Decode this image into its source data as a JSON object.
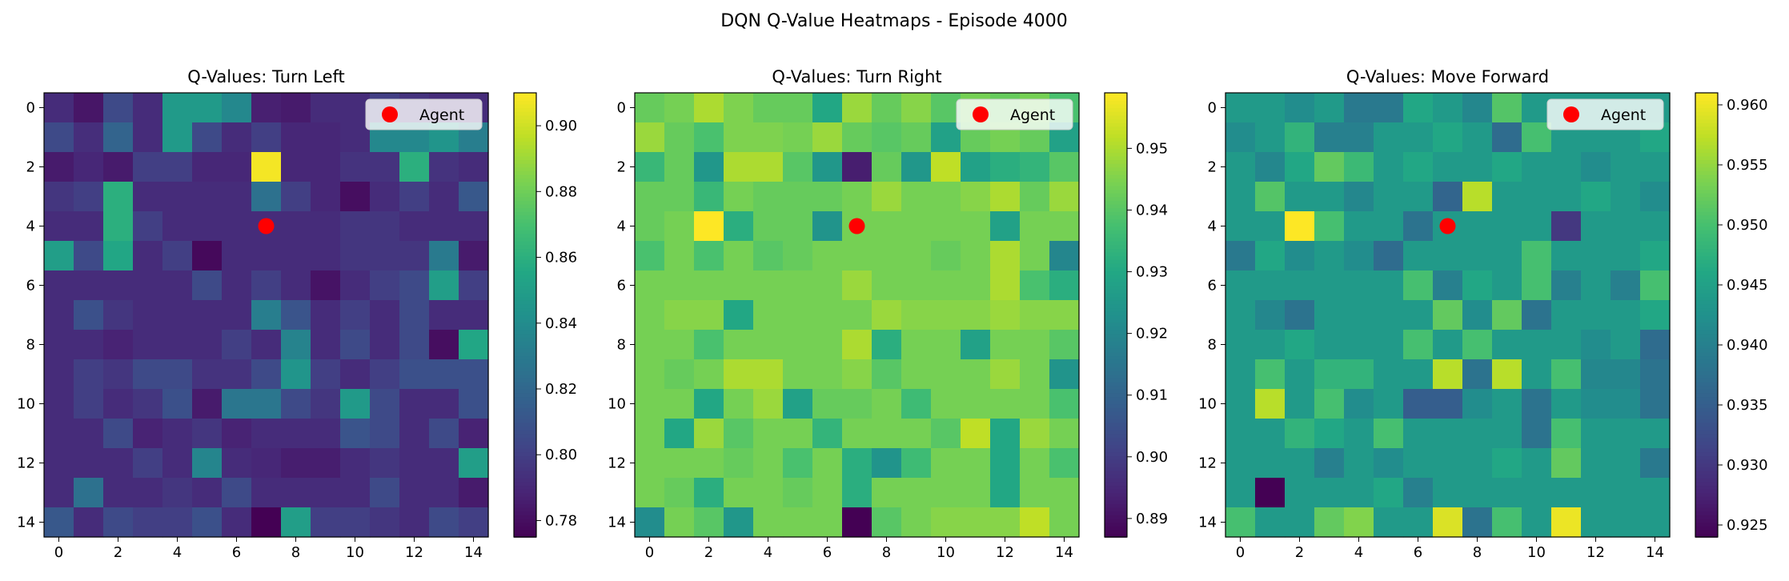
{
  "figure": {
    "suptitle": "DQN Q-Value Heatmaps - Episode 4000"
  },
  "chart_data": [
    {
      "type": "heatmap",
      "title": "Q-Values: Turn Left",
      "xlabel": "",
      "ylabel": "",
      "x_ticks": [
        0,
        2,
        4,
        6,
        8,
        10,
        12,
        14
      ],
      "y_ticks": [
        0,
        2,
        4,
        6,
        8,
        10,
        12,
        14
      ],
      "colorbar": {
        "min": 0.775,
        "max": 0.91,
        "ticks": [
          "0.78",
          "0.80",
          "0.82",
          "0.84",
          "0.86",
          "0.88",
          "0.90"
        ]
      },
      "legend": {
        "label": "Agent",
        "position": "upper right"
      },
      "agent": {
        "x": 7,
        "y": 4,
        "color": "#ff0000"
      },
      "values": [
        [
          0.792,
          0.783,
          0.805,
          0.792,
          0.848,
          0.848,
          0.838,
          0.787,
          0.785,
          0.792,
          0.792,
          0.8,
          0.795,
          0.792,
          0.792
        ],
        [
          0.805,
          0.793,
          0.818,
          0.792,
          0.848,
          0.805,
          0.792,
          0.8,
          0.79,
          0.79,
          0.792,
          0.838,
          0.838,
          0.845,
          0.832
        ],
        [
          0.785,
          0.79,
          0.785,
          0.8,
          0.8,
          0.79,
          0.79,
          0.908,
          0.79,
          0.79,
          0.795,
          0.795,
          0.86,
          0.795,
          0.792
        ],
        [
          0.796,
          0.8,
          0.86,
          0.792,
          0.792,
          0.792,
          0.792,
          0.825,
          0.8,
          0.79,
          0.78,
          0.792,
          0.8,
          0.792,
          0.812
        ],
        [
          0.792,
          0.792,
          0.86,
          0.8,
          0.792,
          0.792,
          0.792,
          0.792,
          0.792,
          0.792,
          0.796,
          0.796,
          0.792,
          0.792,
          0.792
        ],
        [
          0.85,
          0.805,
          0.855,
          0.792,
          0.8,
          0.778,
          0.792,
          0.792,
          0.792,
          0.792,
          0.796,
          0.796,
          0.796,
          0.83,
          0.785
        ],
        [
          0.792,
          0.792,
          0.792,
          0.792,
          0.792,
          0.805,
          0.792,
          0.8,
          0.792,
          0.782,
          0.792,
          0.8,
          0.805,
          0.85,
          0.8
        ],
        [
          0.792,
          0.808,
          0.796,
          0.792,
          0.792,
          0.792,
          0.792,
          0.832,
          0.81,
          0.792,
          0.8,
          0.792,
          0.805,
          0.792,
          0.792
        ],
        [
          0.792,
          0.792,
          0.788,
          0.792,
          0.792,
          0.792,
          0.8,
          0.792,
          0.835,
          0.792,
          0.805,
          0.792,
          0.805,
          0.78,
          0.855
        ],
        [
          0.792,
          0.8,
          0.796,
          0.805,
          0.805,
          0.795,
          0.795,
          0.805,
          0.845,
          0.8,
          0.792,
          0.8,
          0.808,
          0.808,
          0.808
        ],
        [
          0.792,
          0.8,
          0.792,
          0.796,
          0.808,
          0.785,
          0.828,
          0.828,
          0.805,
          0.796,
          0.848,
          0.805,
          0.792,
          0.792,
          0.808
        ],
        [
          0.792,
          0.792,
          0.805,
          0.788,
          0.792,
          0.796,
          0.788,
          0.792,
          0.792,
          0.792,
          0.81,
          0.805,
          0.792,
          0.805,
          0.788
        ],
        [
          0.792,
          0.792,
          0.792,
          0.8,
          0.792,
          0.836,
          0.792,
          0.79,
          0.786,
          0.786,
          0.792,
          0.796,
          0.792,
          0.792,
          0.85
        ],
        [
          0.792,
          0.825,
          0.792,
          0.792,
          0.796,
          0.792,
          0.805,
          0.792,
          0.792,
          0.792,
          0.792,
          0.805,
          0.792,
          0.792,
          0.785
        ],
        [
          0.812,
          0.792,
          0.805,
          0.8,
          0.8,
          0.808,
          0.792,
          0.775,
          0.85,
          0.8,
          0.8,
          0.796,
          0.792,
          0.805,
          0.8
        ]
      ]
    },
    {
      "type": "heatmap",
      "title": "Q-Values: Turn Right",
      "xlabel": "",
      "ylabel": "",
      "x_ticks": [
        0,
        2,
        4,
        6,
        8,
        10,
        12,
        14
      ],
      "y_ticks": [
        0,
        2,
        4,
        6,
        8,
        10,
        12,
        14
      ],
      "colorbar": {
        "min": 0.887,
        "max": 0.959,
        "ticks": [
          "0.89",
          "0.90",
          "0.91",
          "0.92",
          "0.93",
          "0.94",
          "0.95"
        ]
      },
      "legend": {
        "label": "Agent",
        "position": "upper right"
      },
      "agent": {
        "x": 7,
        "y": 4,
        "color": "#ff0000"
      },
      "values": [
        [
          0.942,
          0.944,
          0.95,
          0.945,
          0.942,
          0.942,
          0.93,
          0.948,
          0.942,
          0.946,
          0.94,
          0.944,
          0.942,
          0.944,
          0.938
        ],
        [
          0.948,
          0.942,
          0.938,
          0.945,
          0.945,
          0.944,
          0.948,
          0.942,
          0.94,
          0.942,
          0.928,
          0.942,
          0.944,
          0.942,
          0.928
        ],
        [
          0.935,
          0.942,
          0.925,
          0.95,
          0.95,
          0.94,
          0.925,
          0.893,
          0.942,
          0.925,
          0.952,
          0.928,
          0.932,
          0.934,
          0.94
        ],
        [
          0.942,
          0.942,
          0.935,
          0.944,
          0.942,
          0.942,
          0.942,
          0.944,
          0.948,
          0.944,
          0.944,
          0.946,
          0.95,
          0.942,
          0.948
        ],
        [
          0.942,
          0.944,
          0.959,
          0.932,
          0.942,
          0.942,
          0.924,
          0.944,
          0.944,
          0.944,
          0.944,
          0.944,
          0.928,
          0.944,
          0.944
        ],
        [
          0.938,
          0.944,
          0.938,
          0.944,
          0.94,
          0.942,
          0.944,
          0.944,
          0.944,
          0.944,
          0.942,
          0.944,
          0.95,
          0.944,
          0.92
        ],
        [
          0.944,
          0.944,
          0.944,
          0.944,
          0.944,
          0.944,
          0.944,
          0.948,
          0.944,
          0.944,
          0.944,
          0.944,
          0.95,
          0.938,
          0.932
        ],
        [
          0.944,
          0.946,
          0.946,
          0.93,
          0.944,
          0.944,
          0.944,
          0.944,
          0.948,
          0.946,
          0.946,
          0.946,
          0.948,
          0.946,
          0.946
        ],
        [
          0.944,
          0.944,
          0.938,
          0.944,
          0.944,
          0.944,
          0.944,
          0.95,
          0.932,
          0.944,
          0.944,
          0.928,
          0.944,
          0.944,
          0.94
        ],
        [
          0.944,
          0.942,
          0.944,
          0.95,
          0.95,
          0.944,
          0.944,
          0.946,
          0.94,
          0.944,
          0.944,
          0.944,
          0.948,
          0.944,
          0.924
        ],
        [
          0.944,
          0.944,
          0.93,
          0.944,
          0.948,
          0.928,
          0.942,
          0.942,
          0.944,
          0.936,
          0.944,
          0.944,
          0.944,
          0.944,
          0.938
        ],
        [
          0.944,
          0.93,
          0.948,
          0.94,
          0.944,
          0.944,
          0.934,
          0.944,
          0.944,
          0.944,
          0.94,
          0.952,
          0.93,
          0.948,
          0.944
        ],
        [
          0.944,
          0.944,
          0.944,
          0.942,
          0.944,
          0.938,
          0.944,
          0.932,
          0.924,
          0.936,
          0.944,
          0.944,
          0.93,
          0.944,
          0.938
        ],
        [
          0.944,
          0.942,
          0.932,
          0.944,
          0.944,
          0.942,
          0.944,
          0.932,
          0.944,
          0.944,
          0.944,
          0.944,
          0.93,
          0.944,
          0.944
        ],
        [
          0.922,
          0.944,
          0.94,
          0.925,
          0.944,
          0.944,
          0.944,
          0.887,
          0.94,
          0.944,
          0.946,
          0.946,
          0.946,
          0.952,
          0.944
        ]
      ]
    },
    {
      "type": "heatmap",
      "title": "Q-Values: Move Forward",
      "xlabel": "",
      "ylabel": "",
      "x_ticks": [
        0,
        2,
        4,
        6,
        8,
        10,
        12,
        14
      ],
      "y_ticks": [
        0,
        2,
        4,
        6,
        8,
        10,
        12,
        14
      ],
      "colorbar": {
        "min": 0.924,
        "max": 0.961,
        "ticks": [
          "0.925",
          "0.930",
          "0.935",
          "0.940",
          "0.945",
          "0.950",
          "0.955",
          "0.960"
        ]
      },
      "legend": {
        "label": "Agent",
        "position": "upper right"
      },
      "agent": {
        "x": 7,
        "y": 4,
        "color": "#ff0000"
      },
      "values": [
        [
          0.944,
          0.944,
          0.942,
          0.944,
          0.939,
          0.939,
          0.946,
          0.944,
          0.941,
          0.951,
          0.944,
          0.944,
          0.944,
          0.944,
          0.944
        ],
        [
          0.942,
          0.944,
          0.948,
          0.94,
          0.94,
          0.944,
          0.944,
          0.946,
          0.944,
          0.937,
          0.95,
          0.944,
          0.944,
          0.944,
          0.946
        ],
        [
          0.944,
          0.941,
          0.946,
          0.952,
          0.949,
          0.944,
          0.946,
          0.944,
          0.944,
          0.946,
          0.944,
          0.944,
          0.942,
          0.944,
          0.944
        ],
        [
          0.944,
          0.951,
          0.944,
          0.944,
          0.941,
          0.944,
          0.944,
          0.936,
          0.957,
          0.944,
          0.944,
          0.944,
          0.946,
          0.944,
          0.942
        ],
        [
          0.944,
          0.944,
          0.961,
          0.95,
          0.944,
          0.944,
          0.938,
          0.944,
          0.944,
          0.944,
          0.944,
          0.93,
          0.944,
          0.944,
          0.944
        ],
        [
          0.939,
          0.946,
          0.942,
          0.944,
          0.942,
          0.937,
          0.944,
          0.944,
          0.944,
          0.944,
          0.95,
          0.944,
          0.944,
          0.944,
          0.946
        ],
        [
          0.944,
          0.944,
          0.944,
          0.944,
          0.944,
          0.944,
          0.95,
          0.94,
          0.946,
          0.944,
          0.95,
          0.94,
          0.944,
          0.94,
          0.95
        ],
        [
          0.944,
          0.941,
          0.938,
          0.944,
          0.944,
          0.944,
          0.944,
          0.952,
          0.942,
          0.952,
          0.938,
          0.944,
          0.944,
          0.944,
          0.946
        ],
        [
          0.944,
          0.944,
          0.946,
          0.944,
          0.944,
          0.944,
          0.95,
          0.944,
          0.95,
          0.944,
          0.944,
          0.944,
          0.942,
          0.944,
          0.937
        ],
        [
          0.944,
          0.95,
          0.944,
          0.948,
          0.948,
          0.944,
          0.944,
          0.957,
          0.938,
          0.957,
          0.944,
          0.95,
          0.941,
          0.941,
          0.938
        ],
        [
          0.944,
          0.957,
          0.944,
          0.95,
          0.942,
          0.944,
          0.935,
          0.935,
          0.942,
          0.944,
          0.938,
          0.944,
          0.942,
          0.942,
          0.938
        ],
        [
          0.944,
          0.944,
          0.948,
          0.946,
          0.944,
          0.95,
          0.944,
          0.944,
          0.944,
          0.944,
          0.938,
          0.95,
          0.944,
          0.944,
          0.944
        ],
        [
          0.944,
          0.944,
          0.944,
          0.94,
          0.944,
          0.942,
          0.944,
          0.944,
          0.944,
          0.946,
          0.944,
          0.952,
          0.944,
          0.944,
          0.939
        ],
        [
          0.944,
          0.924,
          0.944,
          0.944,
          0.944,
          0.946,
          0.94,
          0.944,
          0.944,
          0.944,
          0.944,
          0.944,
          0.944,
          0.944,
          0.944
        ],
        [
          0.95,
          0.944,
          0.944,
          0.952,
          0.954,
          0.944,
          0.944,
          0.959,
          0.938,
          0.95,
          0.944,
          0.96,
          0.944,
          0.944,
          0.944
        ]
      ]
    }
  ]
}
